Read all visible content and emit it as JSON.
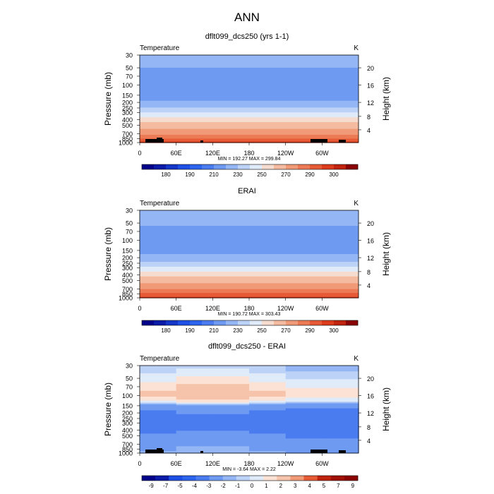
{
  "chart_data": {
    "title": "ANN",
    "panels": [
      {
        "type": "contour",
        "variant": "abs",
        "title": "dflt099_dcs250 (yrs 1-1)",
        "variable": "Temperature",
        "units": "K",
        "ylabel": "Pressure (mb)",
        "y2label": "Height (km)",
        "xticks": [
          "0",
          "60E",
          "120E",
          "180",
          "120W",
          "60W"
        ],
        "yticks": [
          "30",
          "50",
          "70",
          "100",
          "150",
          "200",
          "250",
          "300",
          "400",
          "500",
          "700",
          "850",
          "1000"
        ],
        "y2ticks": [
          "20",
          "16",
          "12",
          "8",
          "4"
        ],
        "stats": "MIN = 192.27   MAX = 299.84",
        "min": 192.27,
        "max": 299.84,
        "colorbar_labels": [
          "180",
          "190",
          "210",
          "230",
          "250",
          "270",
          "290",
          "300"
        ]
      },
      {
        "type": "contour",
        "variant": "abs",
        "title": "ERAI",
        "variable": "Temperature",
        "units": "K",
        "ylabel": "Pressure (mb)",
        "y2label": "Height (km)",
        "xticks": [
          "0",
          "60E",
          "120E",
          "180",
          "120W",
          "60W"
        ],
        "yticks": [
          "30",
          "50",
          "70",
          "100",
          "150",
          "200",
          "250",
          "300",
          "400",
          "500",
          "700",
          "850",
          "1000"
        ],
        "y2ticks": [
          "20",
          "16",
          "12",
          "8",
          "4"
        ],
        "stats": "MIN = 190.72   MAX = 303.43",
        "min": 190.72,
        "max": 303.43,
        "colorbar_labels": [
          "180",
          "190",
          "210",
          "230",
          "250",
          "270",
          "290",
          "300"
        ]
      },
      {
        "type": "contour",
        "variant": "diff",
        "title": "dflt099_dcs250 - ERAI",
        "variable": "Temperature",
        "units": "K",
        "ylabel": "Pressure (mb)",
        "y2label": "Height (km)",
        "xticks": [
          "0",
          "60E",
          "120E",
          "180",
          "120W",
          "60W"
        ],
        "yticks": [
          "30",
          "50",
          "70",
          "100",
          "150",
          "200",
          "250",
          "300",
          "400",
          "500",
          "700",
          "850",
          "1000"
        ],
        "y2ticks": [
          "20",
          "16",
          "12",
          "8",
          "4"
        ],
        "stats": "MIN =   -3.64   MAX =     2.22",
        "min": -3.64,
        "max": 2.22,
        "colorbar_labels": [
          "-9",
          "-7",
          "-5",
          "-4",
          "-3",
          "-2",
          "-1",
          "0",
          "1",
          "2",
          "3",
          "4",
          "5",
          "7",
          "9"
        ]
      }
    ]
  },
  "colors": {
    "temp_scale": [
      "#00008b",
      "#0a1ba8",
      "#1437c8",
      "#1e50e6",
      "#2c64ee",
      "#4a7cef",
      "#6f9af1",
      "#94b6f4",
      "#bcd2f7",
      "#e0ebfa",
      "#f6dccf",
      "#f4bba0",
      "#f19a78",
      "#ec7a55",
      "#e65a36",
      "#dc3b1c",
      "#c0230e",
      "#8b0000"
    ],
    "diff_scale": [
      "#00008b",
      "#0a1ba8",
      "#1e50e6",
      "#2c64ee",
      "#4a7cef",
      "#6f9af1",
      "#94b6f4",
      "#bcd2f7",
      "#e0ebfa",
      "#fbe2d5",
      "#f6c3ab",
      "#f19a78",
      "#e65a36",
      "#c0230e",
      "#a01005",
      "#8b0000"
    ]
  }
}
